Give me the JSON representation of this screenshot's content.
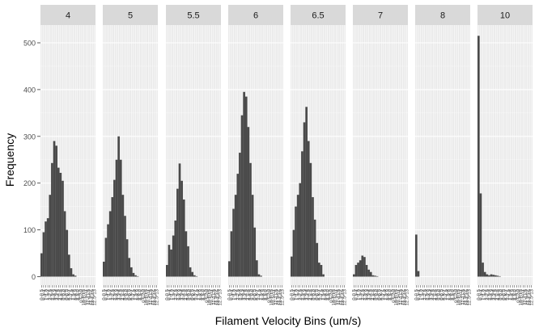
{
  "chart_data": {
    "type": "bar",
    "layout": "faceted",
    "xlabel": "Filament Velocity Bins (um/s)",
    "ylabel": "Frequency",
    "ylim": [
      0,
      540
    ],
    "y_ticks": [
      0,
      100,
      200,
      300,
      400,
      500
    ],
    "grid": true,
    "x_bin_labels": [
      "0-0.5",
      "0.5-1",
      "1-1.5",
      "1.5-2",
      "2-2.5",
      "2.5-3",
      "3-3.5",
      "3.5-4",
      "4-4.5",
      "4.5-5",
      "5-5.5",
      "5.5-6",
      "6-6.5",
      "6.5-7",
      "7-7.5",
      "7.5-8",
      "8-8.5",
      "8.5-9",
      "9-9.5",
      "9.5-10",
      "10-10.5",
      "10.5-11",
      "11-11.5",
      "11.5-12",
      "12-12.5",
      "12.5-13"
    ],
    "facets": [
      {
        "label": "4",
        "values": [
          50,
          95,
          118,
          125,
          175,
          243,
          290,
          280,
          233,
          222,
          205,
          140,
          100,
          47,
          18,
          5,
          2,
          0,
          0,
          0,
          0,
          0,
          0,
          0,
          0,
          0
        ]
      },
      {
        "label": "5",
        "values": [
          32,
          83,
          112,
          140,
          170,
          207,
          250,
          300,
          250,
          175,
          130,
          80,
          40,
          20,
          8,
          3,
          1,
          0,
          0,
          0,
          0,
          0,
          0,
          0,
          0,
          0
        ]
      },
      {
        "label": "5.5",
        "values": [
          25,
          68,
          58,
          88,
          120,
          188,
          242,
          205,
          165,
          97,
          65,
          20,
          10,
          3,
          1,
          0,
          0,
          0,
          0,
          0,
          0,
          0,
          0,
          0,
          0,
          0
        ]
      },
      {
        "label": "6",
        "values": [
          33,
          97,
          145,
          175,
          220,
          265,
          345,
          395,
          385,
          320,
          243,
          175,
          105,
          35,
          5,
          2,
          0,
          0,
          0,
          0,
          0,
          0,
          0,
          0,
          0,
          0
        ]
      },
      {
        "label": "6.5",
        "values": [
          43,
          100,
          150,
          175,
          200,
          268,
          330,
          363,
          290,
          243,
          170,
          122,
          72,
          30,
          25,
          5,
          0,
          0,
          0,
          0,
          0,
          0,
          0,
          0,
          0,
          0
        ]
      },
      {
        "label": "7",
        "values": [
          5,
          25,
          30,
          35,
          45,
          42,
          25,
          15,
          10,
          3,
          2,
          1,
          0,
          0,
          0,
          0,
          0,
          0,
          0,
          0,
          0,
          0,
          0,
          0,
          0,
          0
        ]
      },
      {
        "label": "8",
        "values": [
          90,
          12,
          0,
          0,
          0,
          0,
          0,
          0,
          0,
          0,
          0,
          0,
          0,
          0,
          0,
          0,
          0,
          0,
          0,
          0,
          0,
          0,
          0,
          0,
          0,
          0
        ]
      },
      {
        "label": "10",
        "values": [
          515,
          178,
          30,
          10,
          5,
          3,
          5,
          4,
          3,
          2,
          1,
          0,
          0,
          0,
          0,
          0,
          0,
          0,
          0,
          0,
          0,
          0,
          0,
          0,
          0,
          0
        ]
      }
    ],
    "colors": {
      "bar": "#4a4a4a",
      "panel": "#ebebeb",
      "strip": "#d9d9d9",
      "grid": "#ffffff"
    }
  }
}
